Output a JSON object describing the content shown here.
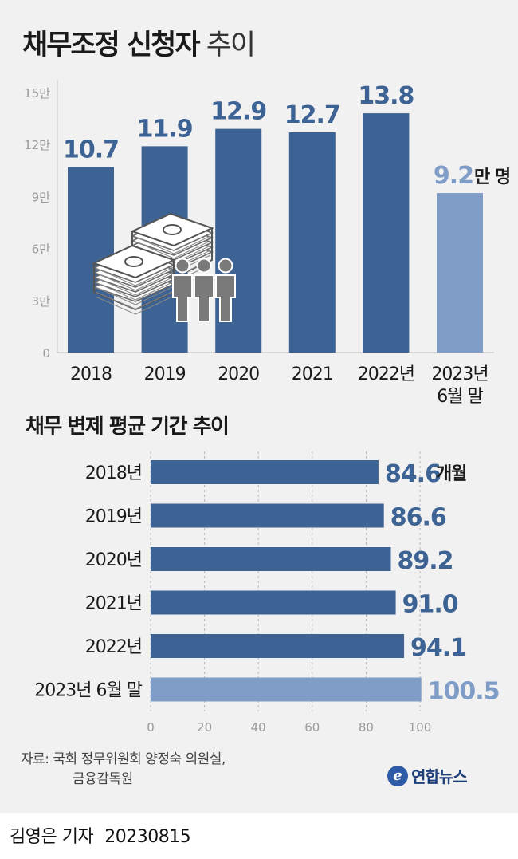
{
  "title_bold": "채무조정 신청자",
  "title_light": "추이",
  "subtitle": "채무 변제 평균 기간 추이",
  "source_line1": "자료: 국회 정무위원회 양정숙 의원실,",
  "source_line2": "금융감독원",
  "logo": "연합뉴스",
  "logo_mark": "e",
  "byline": "김영은 기자",
  "date": "20230815",
  "colors": {
    "bar": "#3d6294",
    "bar_highlight": "#7f9dc6",
    "label": "#3d6294",
    "label_highlight": "#7f9dc6"
  },
  "chart_data": [
    {
      "type": "bar",
      "categories": [
        "2018",
        "2019",
        "2020",
        "2021",
        "2022년",
        "2023년 6월 말"
      ],
      "category_lines": [
        [
          "2018"
        ],
        [
          "2019"
        ],
        [
          "2020"
        ],
        [
          "2021"
        ],
        [
          "2022년"
        ],
        [
          "2023년",
          "6월 말"
        ]
      ],
      "values": [
        10.7,
        11.9,
        12.9,
        12.7,
        13.8,
        9.2
      ],
      "value_labels": [
        "10.7",
        "11.9",
        "12.9",
        "12.7",
        "13.8",
        "9.2"
      ],
      "unit_label": "만 명",
      "yticks": [
        "0",
        "3만",
        "6만",
        "9만",
        "12만",
        "15만"
      ],
      "ytick_values": [
        0,
        3,
        6,
        9,
        12,
        15
      ],
      "ylim": [
        0,
        15
      ],
      "highlight_index": 5,
      "grid": false,
      "illustration": "money-stacks-and-people-icon"
    },
    {
      "type": "bar",
      "orientation": "horizontal",
      "categories": [
        "2018년",
        "2019년",
        "2020년",
        "2021년",
        "2022년",
        "2023년 6월 말"
      ],
      "values": [
        84.6,
        86.6,
        89.2,
        91.0,
        94.1,
        100.5
      ],
      "value_labels": [
        "84.6",
        "86.6",
        "89.2",
        "91.0",
        "94.1",
        "100.5"
      ],
      "unit_label": "개월",
      "xticks": [
        "0",
        "20",
        "40",
        "60",
        "80",
        "100"
      ],
      "xtick_values": [
        0,
        20,
        40,
        60,
        80,
        100
      ],
      "xlim": [
        0,
        100
      ],
      "highlight_index": 5,
      "grid": true
    }
  ]
}
